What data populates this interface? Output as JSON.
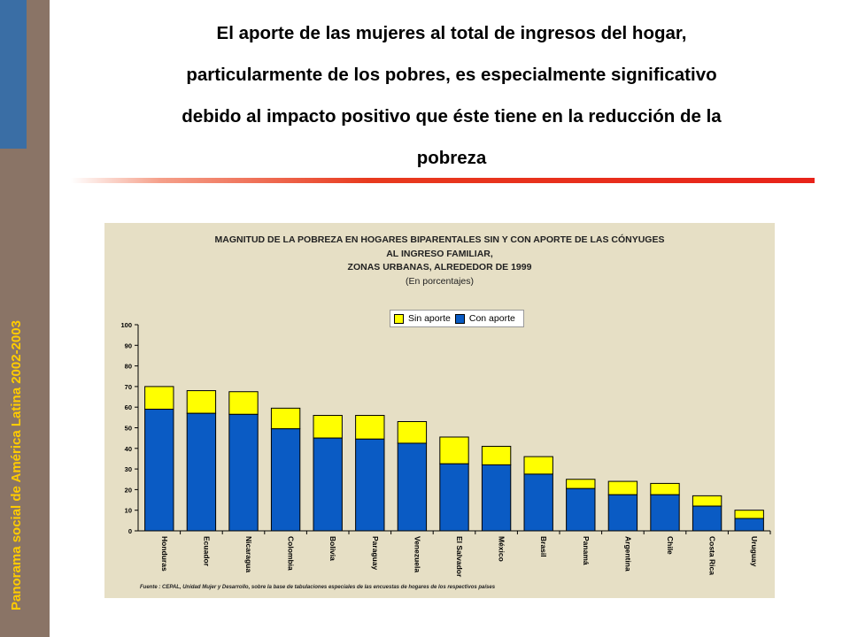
{
  "sidebar": {
    "text": "Panorama social de América Latina 2002-2003"
  },
  "slide": {
    "title_lines": [
      "El aporte de las mujeres al total de ingresos del hogar,",
      "particularmente de los pobres, es especialmente significativo",
      "debido al impacto positivo que éste tiene en la reducción de la",
      "pobreza"
    ]
  },
  "colors": {
    "sin_aporte": "#ffff00",
    "con_aporte": "#0a5bc4",
    "panel": "#e6dfc5",
    "sidebar": "#8a7466",
    "sidebar_text": "#ffcc00",
    "divider": "#e8231a"
  },
  "chart_data": {
    "type": "bar",
    "stacked": true,
    "title_lines": [
      "MAGNITUD DE LA POBREZA EN HOGARES BIPARENTALES SIN Y CON APORTE DE LAS CÓNYUGES",
      "AL INGRESO FAMILIAR,",
      "ZONAS URBANAS, ALREDEDOR DE 1999"
    ],
    "subtitle": "(En porcentajes)",
    "categories": [
      "Honduras",
      "Ecuador",
      "Nicaragua",
      "Colombia",
      "Bolivia",
      "Paraguay",
      "Venezuela",
      "El Salvador",
      "México",
      "Brasil",
      "Panamá",
      "Argentina",
      "Chile",
      "Costa Rica",
      "Uruguay"
    ],
    "con_aporte": [
      59,
      57,
      56.5,
      49.5,
      45,
      44.5,
      42.5,
      32.5,
      32,
      27.5,
      20.5,
      17.5,
      17.5,
      12,
      6
    ],
    "sin_aporte": [
      70,
      68,
      67.5,
      59.5,
      56,
      56,
      53,
      45.5,
      41,
      36,
      25,
      24,
      23,
      17,
      10
    ],
    "legend": [
      "Sin aporte",
      "Con aporte"
    ],
    "legend_position": "top-center",
    "ylim": [
      0,
      100
    ],
    "yticks": [
      0,
      10,
      20,
      30,
      40,
      50,
      60,
      70,
      80,
      90,
      100
    ],
    "grid": false,
    "source": "Fuente : CEPAL, Unidad Mujer y Desarrollo, sobre la base de tabulaciones especiales de las encuestas de hogares de los respectivos países"
  }
}
